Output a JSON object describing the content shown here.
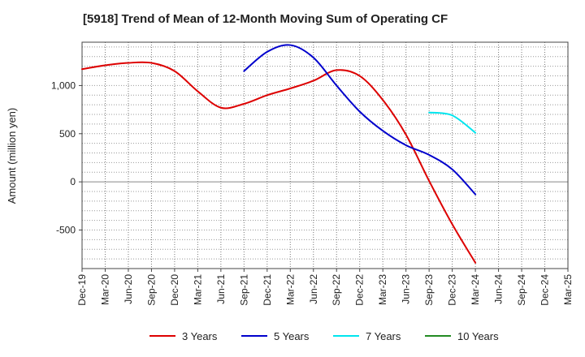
{
  "chart_data": {
    "type": "line",
    "title": "[5918]  Trend of Mean of 12-Month Moving Sum of Operating CF",
    "ylabel": "Amount (million yen)",
    "xlabel": "",
    "ylim": [
      -900,
      1450
    ],
    "yticks": [
      -500,
      0,
      500,
      1000
    ],
    "ytick_labels": [
      "-500",
      "0",
      "500",
      "1,000"
    ],
    "categories": [
      "Dec-19",
      "Mar-20",
      "Jun-20",
      "Sep-20",
      "Dec-20",
      "Mar-21",
      "Jun-21",
      "Sep-21",
      "Dec-21",
      "Mar-22",
      "Jun-22",
      "Sep-22",
      "Dec-22",
      "Mar-23",
      "Jun-23",
      "Sep-23",
      "Dec-23",
      "Mar-24",
      "Jun-24",
      "Sep-24",
      "Dec-24",
      "Mar-25"
    ],
    "grid": true,
    "legend_position": "bottom",
    "series": [
      {
        "name": "3 Years",
        "color": "#dd0000",
        "values": [
          1170,
          1210,
          1235,
          1235,
          1150,
          940,
          770,
          810,
          900,
          970,
          1050,
          1160,
          1100,
          850,
          490,
          10,
          -440,
          -840,
          null,
          null,
          null,
          null
        ]
      },
      {
        "name": "5 Years",
        "color": "#0000cc",
        "values": [
          null,
          null,
          null,
          null,
          null,
          null,
          null,
          1150,
          1350,
          1420,
          1290,
          1000,
          730,
          530,
          380,
          280,
          130,
          -130,
          null,
          null,
          null,
          null
        ]
      },
      {
        "name": "7 Years",
        "color": "#00e5ee",
        "values": [
          null,
          null,
          null,
          null,
          null,
          null,
          null,
          null,
          null,
          null,
          null,
          null,
          null,
          null,
          null,
          720,
          690,
          510,
          null,
          null,
          null,
          null
        ]
      },
      {
        "name": "10 Years",
        "color": "#228b22",
        "values": [
          null,
          null,
          null,
          null,
          null,
          null,
          null,
          null,
          null,
          null,
          null,
          null,
          null,
          null,
          null,
          null,
          null,
          null,
          null,
          null,
          null,
          null
        ]
      }
    ]
  }
}
